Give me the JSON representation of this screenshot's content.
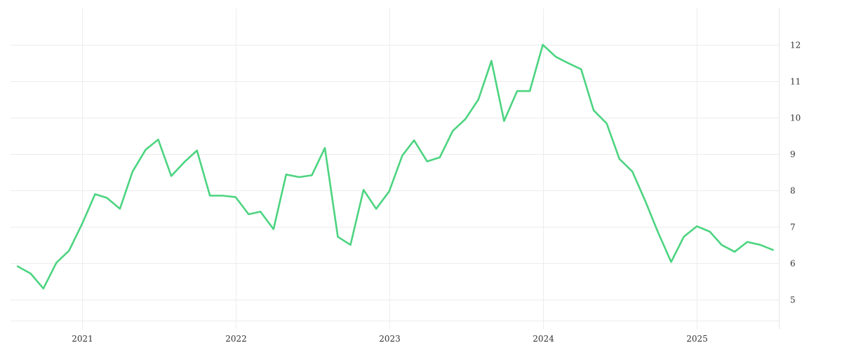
{
  "chart_data": {
    "type": "line",
    "title": "",
    "xlabel": "",
    "ylabel": "",
    "x_ticks": [
      "2021",
      "2022",
      "2023",
      "2024",
      "2025"
    ],
    "y_ticks": [
      5,
      6,
      7,
      8,
      9,
      10,
      11,
      12
    ],
    "ylim": [
      4.2,
      13.0
    ],
    "xlim": [
      "2020-07-15",
      "2025-07-15"
    ],
    "y_axis_side": "right",
    "grid": true,
    "series": [
      {
        "color": "#4cd480",
        "points": [
          [
            "2020-08-01",
            5.92
          ],
          [
            "2020-09-01",
            5.72
          ],
          [
            "2020-10-01",
            5.31
          ],
          [
            "2020-11-01",
            6.02
          ],
          [
            "2020-12-01",
            6.35
          ],
          [
            "2021-01-01",
            7.08
          ],
          [
            "2021-02-01",
            7.9
          ],
          [
            "2021-03-01",
            7.8
          ],
          [
            "2021-04-01",
            7.5
          ],
          [
            "2021-05-01",
            8.52
          ],
          [
            "2021-06-01",
            9.12
          ],
          [
            "2021-07-01",
            9.4
          ],
          [
            "2021-08-01",
            8.4
          ],
          [
            "2021-09-01",
            8.78
          ],
          [
            "2021-10-01",
            9.1
          ],
          [
            "2021-11-01",
            7.86
          ],
          [
            "2021-12-01",
            7.86
          ],
          [
            "2022-01-01",
            7.82
          ],
          [
            "2022-02-01",
            7.35
          ],
          [
            "2022-03-01",
            7.42
          ],
          [
            "2022-04-01",
            6.94
          ],
          [
            "2022-05-01",
            8.44
          ],
          [
            "2022-06-01",
            8.37
          ],
          [
            "2022-07-01",
            8.42
          ],
          [
            "2022-08-01",
            9.17
          ],
          [
            "2022-09-01",
            6.73
          ],
          [
            "2022-10-01",
            6.51
          ],
          [
            "2022-11-01",
            8.02
          ],
          [
            "2022-12-01",
            7.5
          ],
          [
            "2023-01-01",
            7.98
          ],
          [
            "2023-02-01",
            8.96
          ],
          [
            "2023-03-01",
            9.38
          ],
          [
            "2023-04-01",
            8.8
          ],
          [
            "2023-05-01",
            8.91
          ],
          [
            "2023-06-01",
            9.64
          ],
          [
            "2023-07-01",
            9.96
          ],
          [
            "2023-08-01",
            10.5
          ],
          [
            "2023-09-01",
            11.56
          ],
          [
            "2023-10-01",
            9.91
          ],
          [
            "2023-11-01",
            10.73
          ],
          [
            "2023-12-01",
            10.73
          ],
          [
            "2024-01-01",
            12.0
          ],
          [
            "2024-02-01",
            11.67
          ],
          [
            "2024-03-01",
            11.5
          ],
          [
            "2024-04-01",
            11.33
          ],
          [
            "2024-05-01",
            10.2
          ],
          [
            "2024-06-01",
            9.84
          ],
          [
            "2024-07-01",
            8.87
          ],
          [
            "2024-08-01",
            8.52
          ],
          [
            "2024-09-01",
            7.7
          ],
          [
            "2024-10-01",
            6.85
          ],
          [
            "2024-11-01",
            6.04
          ],
          [
            "2024-12-01",
            6.73
          ],
          [
            "2025-01-01",
            7.02
          ],
          [
            "2025-02-01",
            6.87
          ],
          [
            "2025-03-01",
            6.51
          ],
          [
            "2025-04-01",
            6.32
          ],
          [
            "2025-05-01",
            6.59
          ],
          [
            "2025-06-01",
            6.51
          ],
          [
            "2025-07-01",
            6.37
          ]
        ]
      }
    ]
  }
}
